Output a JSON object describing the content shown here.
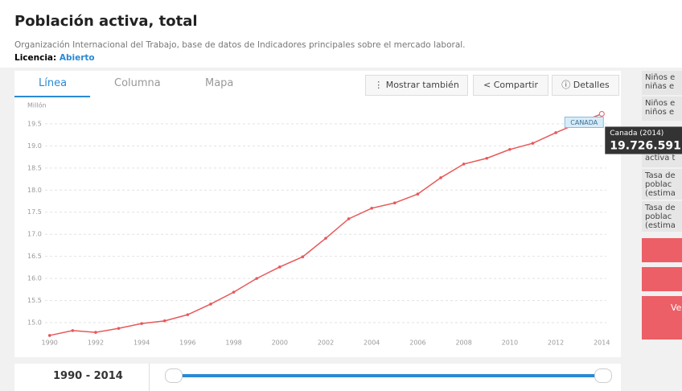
{
  "header": {
    "title": "Población activa, total",
    "source": "Organización Internacional del Trabajo, base de datos de Indicadores principales sobre el mercado laboral.",
    "license_label": "Licencia:",
    "license_value": "Abierto"
  },
  "tabs": [
    "Línea",
    "Columna",
    "Mapa"
  ],
  "buttons": [
    "Mostrar también",
    "Compartir",
    "Detalles"
  ],
  "sidebar": {
    "items": [
      "Niños e niñas e",
      "Niños e niños e",
      "activa t",
      "Tasa de poblac (estima",
      "Tasa de poblac (estima"
    ],
    "button_text": "Ve"
  },
  "range": {
    "label": "1990 - 2014"
  },
  "chart_data": {
    "type": "line",
    "ylabel": "Millón",
    "tooltip_title": "Canada (2014)",
    "x": [
      1990,
      1991,
      1992,
      1993,
      1994,
      1995,
      1996,
      1997,
      1998,
      1999,
      2000,
      2001,
      2002,
      2003,
      2004,
      2005,
      2006,
      2007,
      2008,
      2009,
      2010,
      2011,
      2012,
      2013,
      2014
    ],
    "series": [
      {
        "name": "CANADA",
        "color": "#e8585a",
        "values": [
          14.71,
          14.82,
          14.78,
          14.87,
          14.98,
          15.04,
          15.18,
          15.42,
          15.69,
          16.0,
          16.26,
          16.49,
          16.91,
          17.35,
          17.59,
          17.71,
          17.91,
          18.28,
          18.59,
          18.72,
          18.92,
          19.06,
          19.3,
          19.52,
          19.726591
        ],
        "value_labels": [
          null,
          null,
          null,
          null,
          null,
          null,
          null,
          null,
          null,
          null,
          null,
          null,
          null,
          null,
          null,
          null,
          null,
          null,
          null,
          null,
          null,
          null,
          null,
          null,
          "19.726.591"
        ]
      }
    ],
    "xlim": [
      1989.8,
      2014.2
    ],
    "xticks": [
      1990,
      1992,
      1994,
      1996,
      1998,
      2000,
      2002,
      2004,
      2006,
      2008,
      2010,
      2012,
      2014
    ],
    "ylim": [
      14.7,
      19.75
    ],
    "yticks": [
      {
        "value": 15,
        "label": "15.0"
      },
      15.5,
      {
        "value": 16,
        "label": "16.0"
      },
      16.5,
      {
        "value": 17,
        "label": "17.0"
      },
      17.5,
      {
        "value": 18,
        "label": "18.0"
      },
      18.5,
      {
        "value": 19,
        "label": "19.0"
      },
      19.5
    ],
    "grid": true
  }
}
